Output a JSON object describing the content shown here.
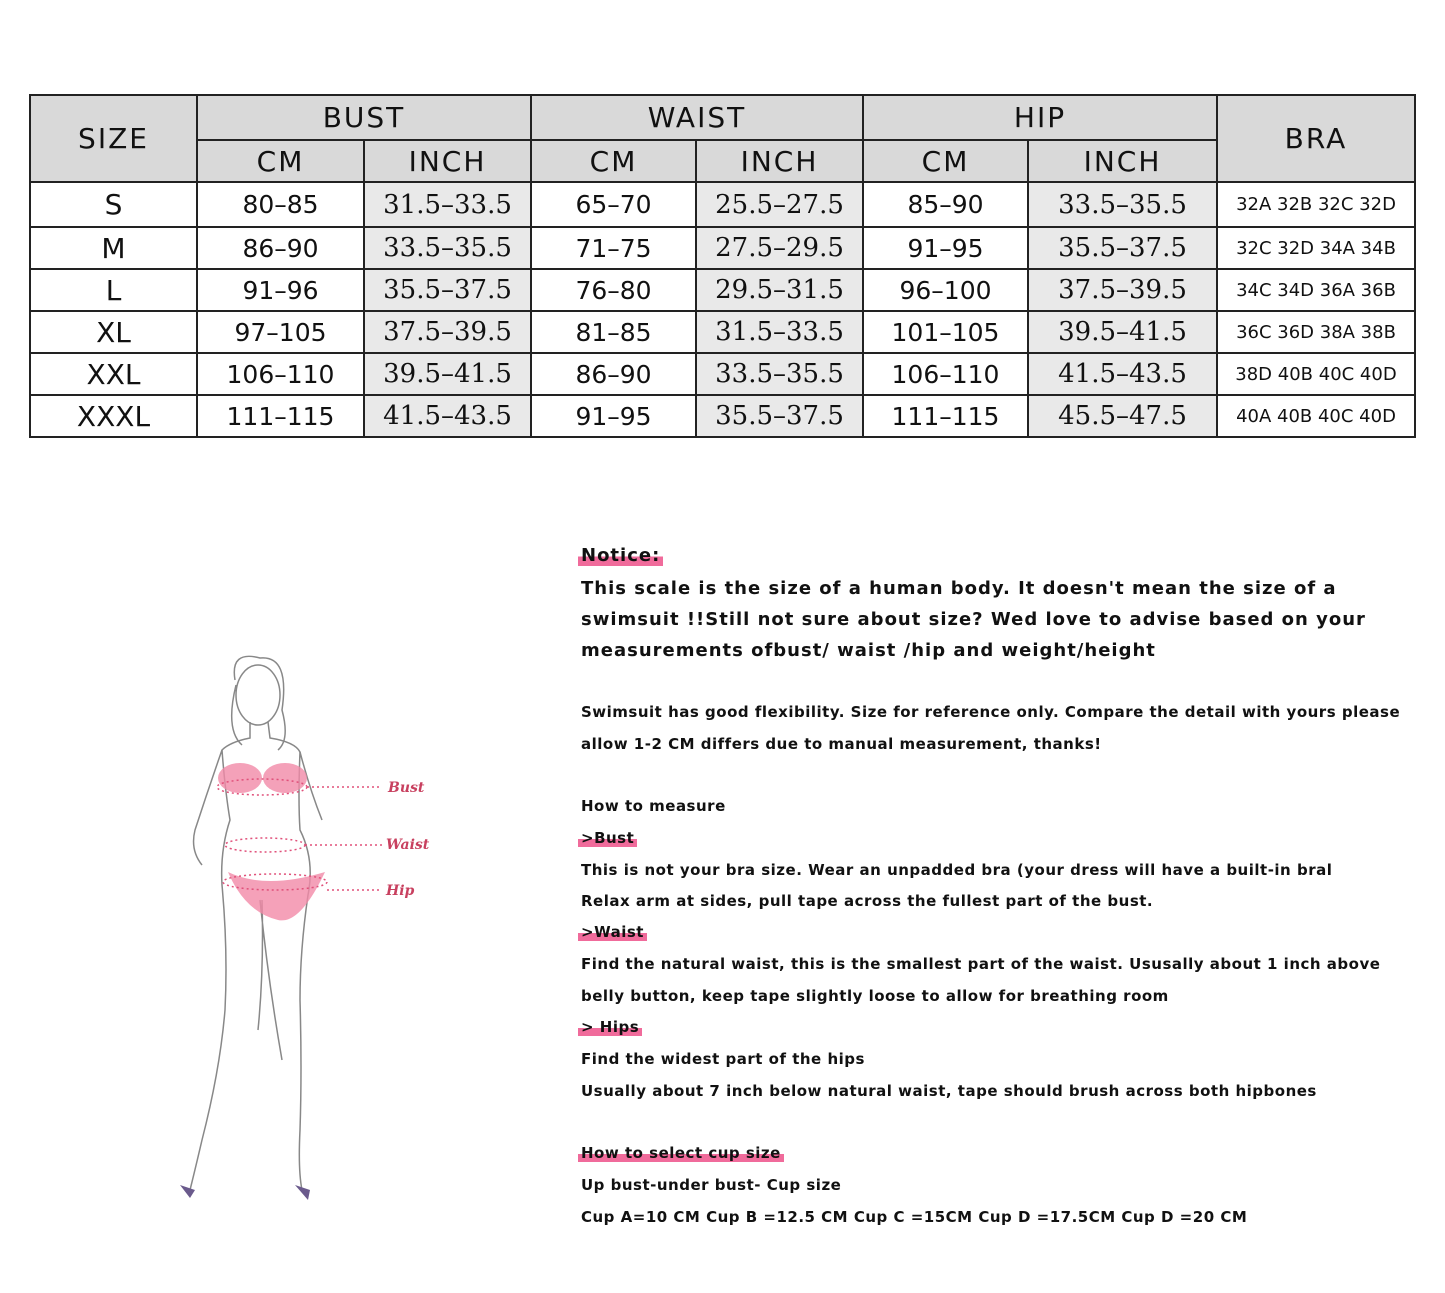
{
  "table": {
    "header": {
      "size": "SIZE",
      "groups": [
        "BUST",
        "WAIST",
        "HIP"
      ],
      "units": [
        "CM",
        "INCH",
        "CM",
        "INCH",
        "CM",
        "INCH"
      ],
      "bra": "BRA"
    },
    "rows": [
      [
        "S",
        "80–85",
        "31.5–33.5",
        "65–70",
        "25.5–27.5",
        "85–90",
        "33.5–35.5",
        "32A  32B  32C  32D"
      ],
      [
        "M",
        "86–90",
        "33.5–35.5",
        "71–75",
        "27.5–29.5",
        "91–95",
        "35.5–37.5",
        "32C  32D  34A  34B"
      ],
      [
        "L",
        "91–96",
        "35.5–37.5",
        "76–80",
        "29.5–31.5",
        "96–100",
        "37.5–39.5",
        "34C  34D  36A  36B"
      ],
      [
        "XL",
        "97–105",
        "37.5–39.5",
        "81–85",
        "31.5–33.5",
        "101–105",
        "39.5–41.5",
        "36C  36D  38A  38B"
      ],
      [
        "XXL",
        "106–110",
        "39.5–41.5",
        "86–90",
        "33.5–35.5",
        "106–110",
        "41.5–43.5",
        "38D  40B  40C  40D"
      ],
      [
        "XXXL",
        "111–115",
        "41.5–43.5",
        "91–95",
        "35.5–37.5",
        "111–115",
        "45.5–47.5",
        "40A  40B  40C  40D"
      ]
    ]
  },
  "figure": {
    "labels": [
      "Bust",
      "Waist",
      "Hip"
    ]
  },
  "notes": {
    "notice_title": "Notice:",
    "notice": [
      "This scale is the size of a human body. It doesn't mean the size of a",
      "swimsuit !!Still not sure about size? Wed love to advise based on your",
      "measurements ofbust/ waist /hip and weight/height"
    ],
    "flex": [
      "Swimsuit has good flexibility. Size for reference only. Compare the detail with yours please",
      "allow 1-2 CM differs due to manual measurement, thanks!"
    ],
    "how_to_measure": "How to measure",
    "bust_title": ">Bust",
    "bust": [
      "This is not your bra size. Wear an unpadded bra (your dress will have a built-in bral",
      "Relax arm at sides, pull tape across the fullest part of the bust."
    ],
    "waist_title": ">Waist",
    "waist": [
      "Find the natural waist, this is the smallest part of the waist. Ususally about 1 inch above",
      "belly button, keep tape slightly loose to allow for breathing room"
    ],
    "hips_title": "> Hips",
    "hips": [
      "Find the widest part of the hips",
      "Usually about 7 inch below natural waist, tape should brush across both hipbones"
    ],
    "cup_title": "How to select cup size",
    "cup": [
      "Up bust-under bust- Cup size",
      "Cup A=10 CM Cup B =12.5 CM Cup C =15CM Cup D =17.5CM Cup D =20 CM"
    ]
  }
}
